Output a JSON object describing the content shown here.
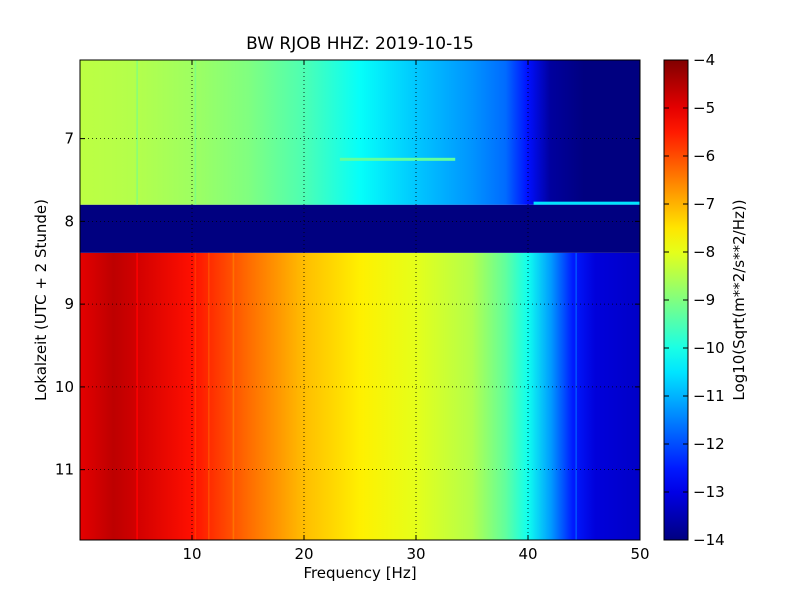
{
  "chart_data": {
    "type": "heatmap",
    "title": "BW RJOB HHZ: 2019-10-15",
    "xlabel": "Frequency [Hz]",
    "ylabel": "Lokalzeit (UTC + 2 Stunde)",
    "colorbar_label": "Log10(Sqrt(m**2/s**2/Hz))",
    "xlim": [
      0,
      50
    ],
    "ylim": [
      11.85,
      6.05
    ],
    "y_inverted": true,
    "x_ticks": [
      10,
      20,
      30,
      40,
      50
    ],
    "x_tick_labels": [
      "10",
      "20",
      "30",
      "40",
      "50"
    ],
    "y_ticks": [
      7,
      8,
      9,
      10,
      11
    ],
    "y_tick_labels": [
      "7",
      "8",
      "9",
      "10",
      "11"
    ],
    "clim": [
      -14,
      -4
    ],
    "colorbar_ticks": [
      -4,
      -5,
      -6,
      -7,
      -8,
      -9,
      -10,
      -11,
      -12,
      -13,
      -14
    ],
    "colorbar_tick_labels": [
      "−4",
      "−5",
      "−6",
      "−7",
      "−8",
      "−9",
      "−10",
      "−11",
      "−12",
      "−13",
      "−14"
    ],
    "colormap": "jet",
    "grid": true,
    "gap": {
      "y_start": 7.8,
      "y_end": 8.38,
      "value": -14
    },
    "segments": [
      {
        "y_start": 6.05,
        "y_end": 7.8,
        "frequency_hz": [
          0,
          5,
          10,
          15,
          20,
          25,
          30,
          35,
          38,
          40,
          42,
          45,
          50
        ],
        "log_amplitude": [
          -8.4,
          -8.5,
          -8.7,
          -9.0,
          -9.5,
          -10.2,
          -10.8,
          -11.3,
          -11.7,
          -12.6,
          -13.7,
          -14.0,
          -14.0
        ]
      },
      {
        "y_start": 8.38,
        "y_end": 11.85,
        "frequency_hz": [
          0,
          3,
          5,
          10,
          15,
          20,
          25,
          30,
          35,
          38,
          40,
          42,
          44,
          46,
          50
        ],
        "log_amplitude": [
          -5.0,
          -4.6,
          -4.8,
          -5.4,
          -6.3,
          -7.1,
          -7.6,
          -8.0,
          -8.5,
          -9.3,
          -10.1,
          -11.2,
          -12.5,
          -13.1,
          -13.3
        ]
      }
    ],
    "features": [
      {
        "type": "narrow_line",
        "frequency_hz": 5.1,
        "y_range": [
          6.05,
          11.85
        ],
        "delta": -0.4
      },
      {
        "type": "narrow_line",
        "frequency_hz": 10.3,
        "y_range": [
          6.05,
          11.85
        ],
        "delta": -0.3
      },
      {
        "type": "narrow_line",
        "frequency_hz": 11.5,
        "y_range": [
          8.38,
          11.85
        ],
        "delta": -0.3
      },
      {
        "type": "narrow_line",
        "frequency_hz": 13.7,
        "y_range": [
          8.38,
          11.85
        ],
        "delta": -0.3
      },
      {
        "type": "narrow_line",
        "frequency_hz": 44.3,
        "y_range": [
          8.38,
          11.85
        ],
        "delta": 0.6
      },
      {
        "type": "short_streak",
        "frequency_range": [
          23.2,
          33.5
        ],
        "y": 7.25,
        "delta": 1.3
      },
      {
        "type": "short_streak",
        "frequency_range": [
          40.5,
          50.0
        ],
        "y": 7.78,
        "delta": 3.5
      }
    ]
  }
}
